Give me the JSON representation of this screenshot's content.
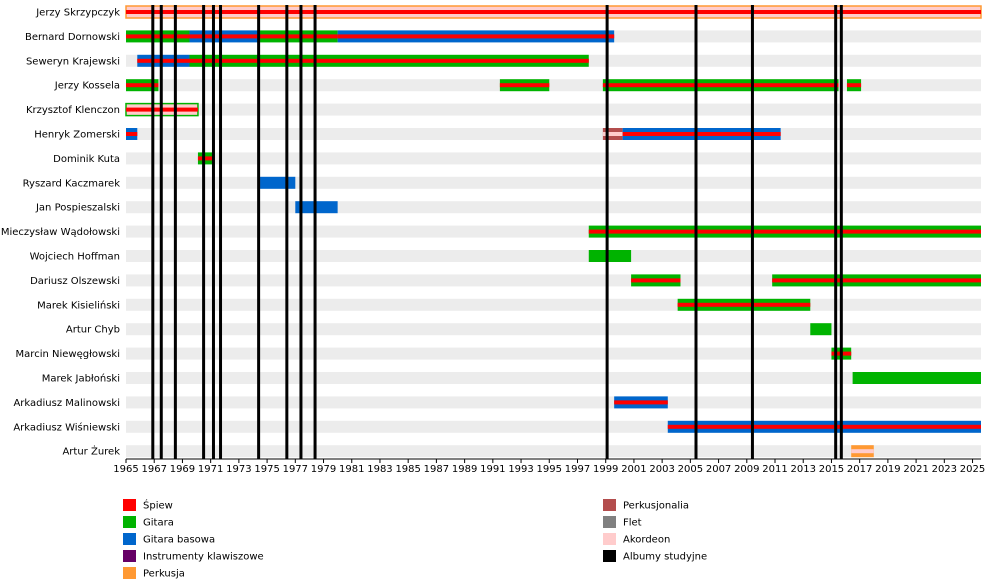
{
  "chart_data": {
    "type": "timeline",
    "title": "",
    "xlabel": "",
    "ylabel": "",
    "x_range": [
      1965,
      2025.6
    ],
    "x_ticks": [
      1965,
      1967,
      1969,
      1971,
      1973,
      1975,
      1977,
      1979,
      1981,
      1983,
      1985,
      1987,
      1989,
      1991,
      1993,
      1995,
      1997,
      1999,
      2001,
      2003,
      2005,
      2007,
      2009,
      2011,
      2013,
      2015,
      2017,
      2019,
      2021,
      2023,
      2025
    ],
    "album_years": [
      1966.9,
      1967.5,
      1968.5,
      1970.5,
      1971.2,
      1971.7,
      1974.4,
      1976.4,
      1977.4,
      1978.4,
      1999.1,
      2005.4,
      2009.4,
      2015.3,
      2015.7
    ],
    "instruments": {
      "vocals": {
        "label": "Śpiew",
        "color": "#ff0000"
      },
      "guitar": {
        "label": "Gitara",
        "color": "#00b300"
      },
      "bass": {
        "label": "Gitara basowa",
        "color": "#0066cc"
      },
      "keys": {
        "label": "Instrumenty klawiszowe",
        "color": "#660066"
      },
      "drums": {
        "label": "Perkusja",
        "color": "#ff9933"
      },
      "perc": {
        "label": "Perkusjonalia",
        "color": "#b34d4d"
      },
      "flute": {
        "label": "Flet",
        "color": "#808080"
      },
      "accordion": {
        "label": "Akordeon",
        "color": "#ffcccc"
      },
      "albums": {
        "label": "Albumy studyjne",
        "color": "#000000"
      }
    },
    "legend_left": [
      "vocals",
      "guitar",
      "bass",
      "keys",
      "drums"
    ],
    "legend_right": [
      "perc",
      "flute",
      "accordion",
      "albums"
    ],
    "members": [
      {
        "name": "Jerzy Skrzypczyk",
        "periods": [
          {
            "start": 1965,
            "end": 2025.6,
            "main": "accordion",
            "center": "vocals",
            "stroke": "drums"
          }
        ]
      },
      {
        "name": "Bernard Dornowski",
        "periods": [
          {
            "start": 1965,
            "end": 1969.5,
            "main": "guitar",
            "center": "vocals"
          },
          {
            "start": 1969.5,
            "end": 1974.5,
            "main": "bass",
            "center": "vocals"
          },
          {
            "start": 1974.5,
            "end": 1980,
            "main": "guitar",
            "center": "vocals"
          },
          {
            "start": 1980,
            "end": 1999.6,
            "main": "bass",
            "center": "vocals"
          }
        ]
      },
      {
        "name": "Seweryn Krajewski",
        "periods": [
          {
            "start": 1965.8,
            "end": 1969.5,
            "main": "bass",
            "center": "vocals"
          },
          {
            "start": 1969.5,
            "end": 1997.8,
            "main": "guitar",
            "center": "vocals"
          }
        ]
      },
      {
        "name": "Jerzy Kossela",
        "periods": [
          {
            "start": 1965,
            "end": 1967.3,
            "main": "guitar",
            "center": "vocals"
          },
          {
            "start": 1991.5,
            "end": 1995,
            "main": "guitar",
            "center": "vocals"
          },
          {
            "start": 1998.8,
            "end": 2015.5,
            "main": "guitar",
            "center": "vocals"
          },
          {
            "start": 2016.1,
            "end": 2017.1,
            "main": "guitar",
            "center": "vocals"
          }
        ]
      },
      {
        "name": "Krzysztof Klenczon",
        "periods": [
          {
            "start": 1965,
            "end": 1970.1,
            "main": "accordion",
            "center": "vocals",
            "stroke": "guitar"
          }
        ]
      },
      {
        "name": "Henryk Zomerski",
        "periods": [
          {
            "start": 1965,
            "end": 1965.8,
            "main": "bass",
            "center": "vocals"
          },
          {
            "start": 1998.8,
            "end": 2000.2,
            "main": "perc",
            "center": "accordion"
          },
          {
            "start": 2000.2,
            "end": 2011.4,
            "main": "bass",
            "center": "vocals"
          }
        ]
      },
      {
        "name": "Dominik Kuta",
        "periods": [
          {
            "start": 1970.1,
            "end": 1971.1,
            "main": "guitar",
            "center": "vocals"
          }
        ]
      },
      {
        "name": "Ryszard Kaczmarek",
        "periods": [
          {
            "start": 1974.5,
            "end": 1977,
            "main": "bass"
          }
        ]
      },
      {
        "name": "Jan Pospieszalski",
        "periods": [
          {
            "start": 1977,
            "end": 1980,
            "main": "bass"
          }
        ]
      },
      {
        "name": "Mieczysław Wądołowski",
        "periods": [
          {
            "start": 1997.8,
            "end": 2025.6,
            "main": "guitar",
            "center": "vocals"
          }
        ]
      },
      {
        "name": "Wojciech Hoffman",
        "periods": [
          {
            "start": 1997.8,
            "end": 2000.8,
            "main": "guitar"
          }
        ]
      },
      {
        "name": "Dariusz Olszewski",
        "periods": [
          {
            "start": 2000.8,
            "end": 2004.3,
            "main": "guitar",
            "center": "vocals"
          },
          {
            "start": 2010.8,
            "end": 2025.6,
            "main": "guitar",
            "center": "vocals"
          }
        ]
      },
      {
        "name": "Marek Kisieliński",
        "periods": [
          {
            "start": 2004.1,
            "end": 2013.5,
            "main": "guitar",
            "center": "vocals"
          }
        ]
      },
      {
        "name": "Artur Chyb",
        "periods": [
          {
            "start": 2013.5,
            "end": 2015,
            "main": "guitar"
          }
        ]
      },
      {
        "name": "Marcin Niewęgłowski",
        "periods": [
          {
            "start": 2015,
            "end": 2016.4,
            "main": "guitar",
            "center": "vocals"
          }
        ]
      },
      {
        "name": "Marek Jabłoński",
        "periods": [
          {
            "start": 2016.5,
            "end": 2025.6,
            "main": "guitar"
          }
        ]
      },
      {
        "name": "Arkadiusz Malinowski",
        "periods": [
          {
            "start": 1999.6,
            "end": 2003.4,
            "main": "bass",
            "center": "vocals"
          }
        ]
      },
      {
        "name": "Arkadiusz Wiśniewski",
        "periods": [
          {
            "start": 2003.4,
            "end": 2025.6,
            "main": "bass",
            "center": "vocals"
          }
        ]
      },
      {
        "name": "Artur Żurek",
        "periods": [
          {
            "start": 2016.4,
            "end": 2018,
            "main": "drums",
            "center": "accordion"
          }
        ]
      }
    ]
  }
}
